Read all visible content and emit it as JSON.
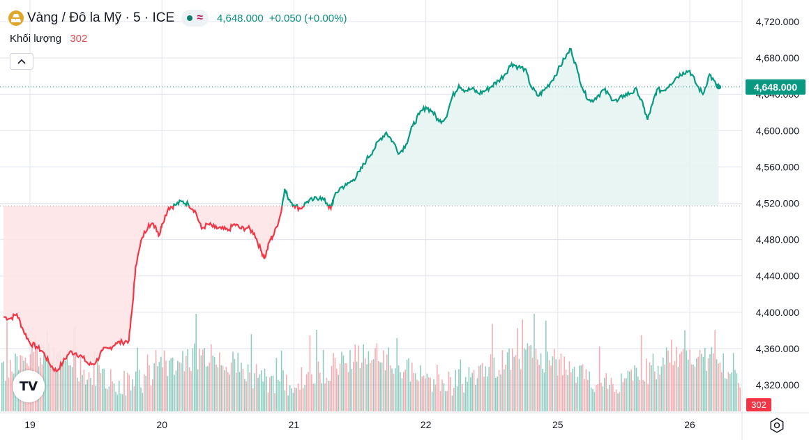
{
  "header": {
    "symbol_title": "Vàng / Đô la Mỹ · 5 · ICE",
    "price": "4,648.000",
    "change": "+0.050 (+0.00%)",
    "symbol_icon": "gold-bars-icon",
    "status_icon": "market-status-dot-icon",
    "delay_icon": "wave-icon"
  },
  "volume_legend": {
    "label": "Khối lượng",
    "value": "302"
  },
  "colors": {
    "up": "#089981",
    "down": "#f23645",
    "up_fill": "#e5f4f1",
    "down_fill": "#fde4e6",
    "vol_up": "#7cc4b6",
    "vol_down": "#f3a0a6",
    "grid": "#e0e3eb",
    "axis_text": "#131722",
    "price_badge": "#089981",
    "volume_badge": "#f23645"
  },
  "chart_data": {
    "type": "area",
    "title": "Vàng / Đô la Mỹ · 5 · ICE",
    "y_axis": {
      "ticks": [
        "4,720.000",
        "4,680.000",
        "4,640.000",
        "4,600.000",
        "4,560.000",
        "4,520.000",
        "4,480.000",
        "4,440.000",
        "4,400.000",
        "4,360.000",
        "4,320.000"
      ],
      "tick_values": [
        4720,
        4680,
        4640,
        4600,
        4560,
        4520,
        4480,
        4440,
        4400,
        4360,
        4320
      ],
      "range": [
        4300,
        4740
      ],
      "position": "right"
    },
    "x_axis": {
      "ticks": [
        "19",
        "20",
        "21",
        "22",
        "25",
        "26"
      ],
      "tick_positions": [
        0,
        1,
        2,
        3,
        4,
        5
      ]
    },
    "baseline": 4517,
    "last_price": 4648,
    "last_price_label": "4,648.000",
    "last_volume_label": "302",
    "x_end": 5.4,
    "series": [
      {
        "points": [
          [
            -0.2,
            4395
          ],
          [
            -0.15,
            4393
          ],
          [
            -0.1,
            4398
          ],
          [
            -0.05,
            4380
          ],
          [
            0.0,
            4366
          ],
          [
            0.05,
            4362
          ],
          [
            0.1,
            4356
          ],
          [
            0.15,
            4343
          ],
          [
            0.2,
            4335
          ],
          [
            0.25,
            4345
          ],
          [
            0.3,
            4356
          ],
          [
            0.35,
            4355
          ],
          [
            0.4,
            4350
          ],
          [
            0.45,
            4342
          ],
          [
            0.5,
            4345
          ],
          [
            0.55,
            4358
          ],
          [
            0.6,
            4360
          ],
          [
            0.65,
            4366
          ],
          [
            0.7,
            4367
          ],
          [
            0.75,
            4369
          ],
          [
            0.78,
            4412
          ],
          [
            0.8,
            4450
          ],
          [
            0.85,
            4482
          ],
          [
            0.9,
            4497
          ],
          [
            0.95,
            4495
          ],
          [
            0.98,
            4485
          ],
          [
            1.0,
            4497
          ],
          [
            1.05,
            4515
          ],
          [
            1.1,
            4518
          ],
          [
            1.15,
            4522
          ],
          [
            1.2,
            4519
          ],
          [
            1.25,
            4512
          ],
          [
            1.3,
            4492
          ],
          [
            1.35,
            4497
          ],
          [
            1.4,
            4493
          ],
          [
            1.45,
            4492
          ],
          [
            1.5,
            4490
          ],
          [
            1.55,
            4497
          ],
          [
            1.6,
            4492
          ],
          [
            1.65,
            4493
          ],
          [
            1.7,
            4487
          ],
          [
            1.75,
            4468
          ],
          [
            1.78,
            4460
          ],
          [
            1.82,
            4480
          ],
          [
            1.85,
            4486
          ],
          [
            1.9,
            4508
          ],
          [
            1.93,
            4536
          ],
          [
            1.95,
            4528
          ],
          [
            2.0,
            4518
          ],
          [
            2.05,
            4514
          ],
          [
            2.1,
            4522
          ],
          [
            2.15,
            4524
          ],
          [
            2.2,
            4527
          ],
          [
            2.25,
            4520
          ],
          [
            2.28,
            4514
          ],
          [
            2.3,
            4525
          ],
          [
            2.35,
            4537
          ],
          [
            2.4,
            4540
          ],
          [
            2.45,
            4546
          ],
          [
            2.5,
            4555
          ],
          [
            2.55,
            4568
          ],
          [
            2.6,
            4578
          ],
          [
            2.65,
            4590
          ],
          [
            2.7,
            4598
          ],
          [
            2.75,
            4588
          ],
          [
            2.8,
            4575
          ],
          [
            2.85,
            4585
          ],
          [
            2.9,
            4605
          ],
          [
            2.95,
            4618
          ],
          [
            3.0,
            4626
          ],
          [
            3.05,
            4621
          ],
          [
            3.1,
            4610
          ],
          [
            3.15,
            4614
          ],
          [
            3.2,
            4637
          ],
          [
            3.25,
            4650
          ],
          [
            3.3,
            4644
          ],
          [
            3.35,
            4646
          ],
          [
            3.4,
            4641
          ],
          [
            3.45,
            4644
          ],
          [
            3.5,
            4649
          ],
          [
            3.55,
            4655
          ],
          [
            3.6,
            4662
          ],
          [
            3.65,
            4674
          ],
          [
            3.7,
            4670
          ],
          [
            3.75,
            4668
          ],
          [
            3.8,
            4648
          ],
          [
            3.85,
            4638
          ],
          [
            3.9,
            4645
          ],
          [
            3.95,
            4654
          ],
          [
            4.0,
            4666
          ],
          [
            4.05,
            4679
          ],
          [
            4.1,
            4690
          ],
          [
            4.15,
            4665
          ],
          [
            4.2,
            4642
          ],
          [
            4.25,
            4632
          ],
          [
            4.3,
            4638
          ],
          [
            4.35,
            4645
          ],
          [
            4.4,
            4637
          ],
          [
            4.45,
            4632
          ],
          [
            4.5,
            4639
          ],
          [
            4.55,
            4641
          ],
          [
            4.6,
            4645
          ],
          [
            4.65,
            4626
          ],
          [
            4.68,
            4612
          ],
          [
            4.72,
            4630
          ],
          [
            4.75,
            4645
          ],
          [
            4.8,
            4644
          ],
          [
            4.85,
            4651
          ],
          [
            4.9,
            4659
          ],
          [
            4.95,
            4664
          ],
          [
            5.0,
            4666
          ],
          [
            5.05,
            4651
          ],
          [
            5.1,
            4640
          ],
          [
            5.15,
            4662
          ],
          [
            5.2,
            4650
          ],
          [
            5.22,
            4648
          ]
        ]
      }
    ],
    "volume_axis_max": 600
  }
}
